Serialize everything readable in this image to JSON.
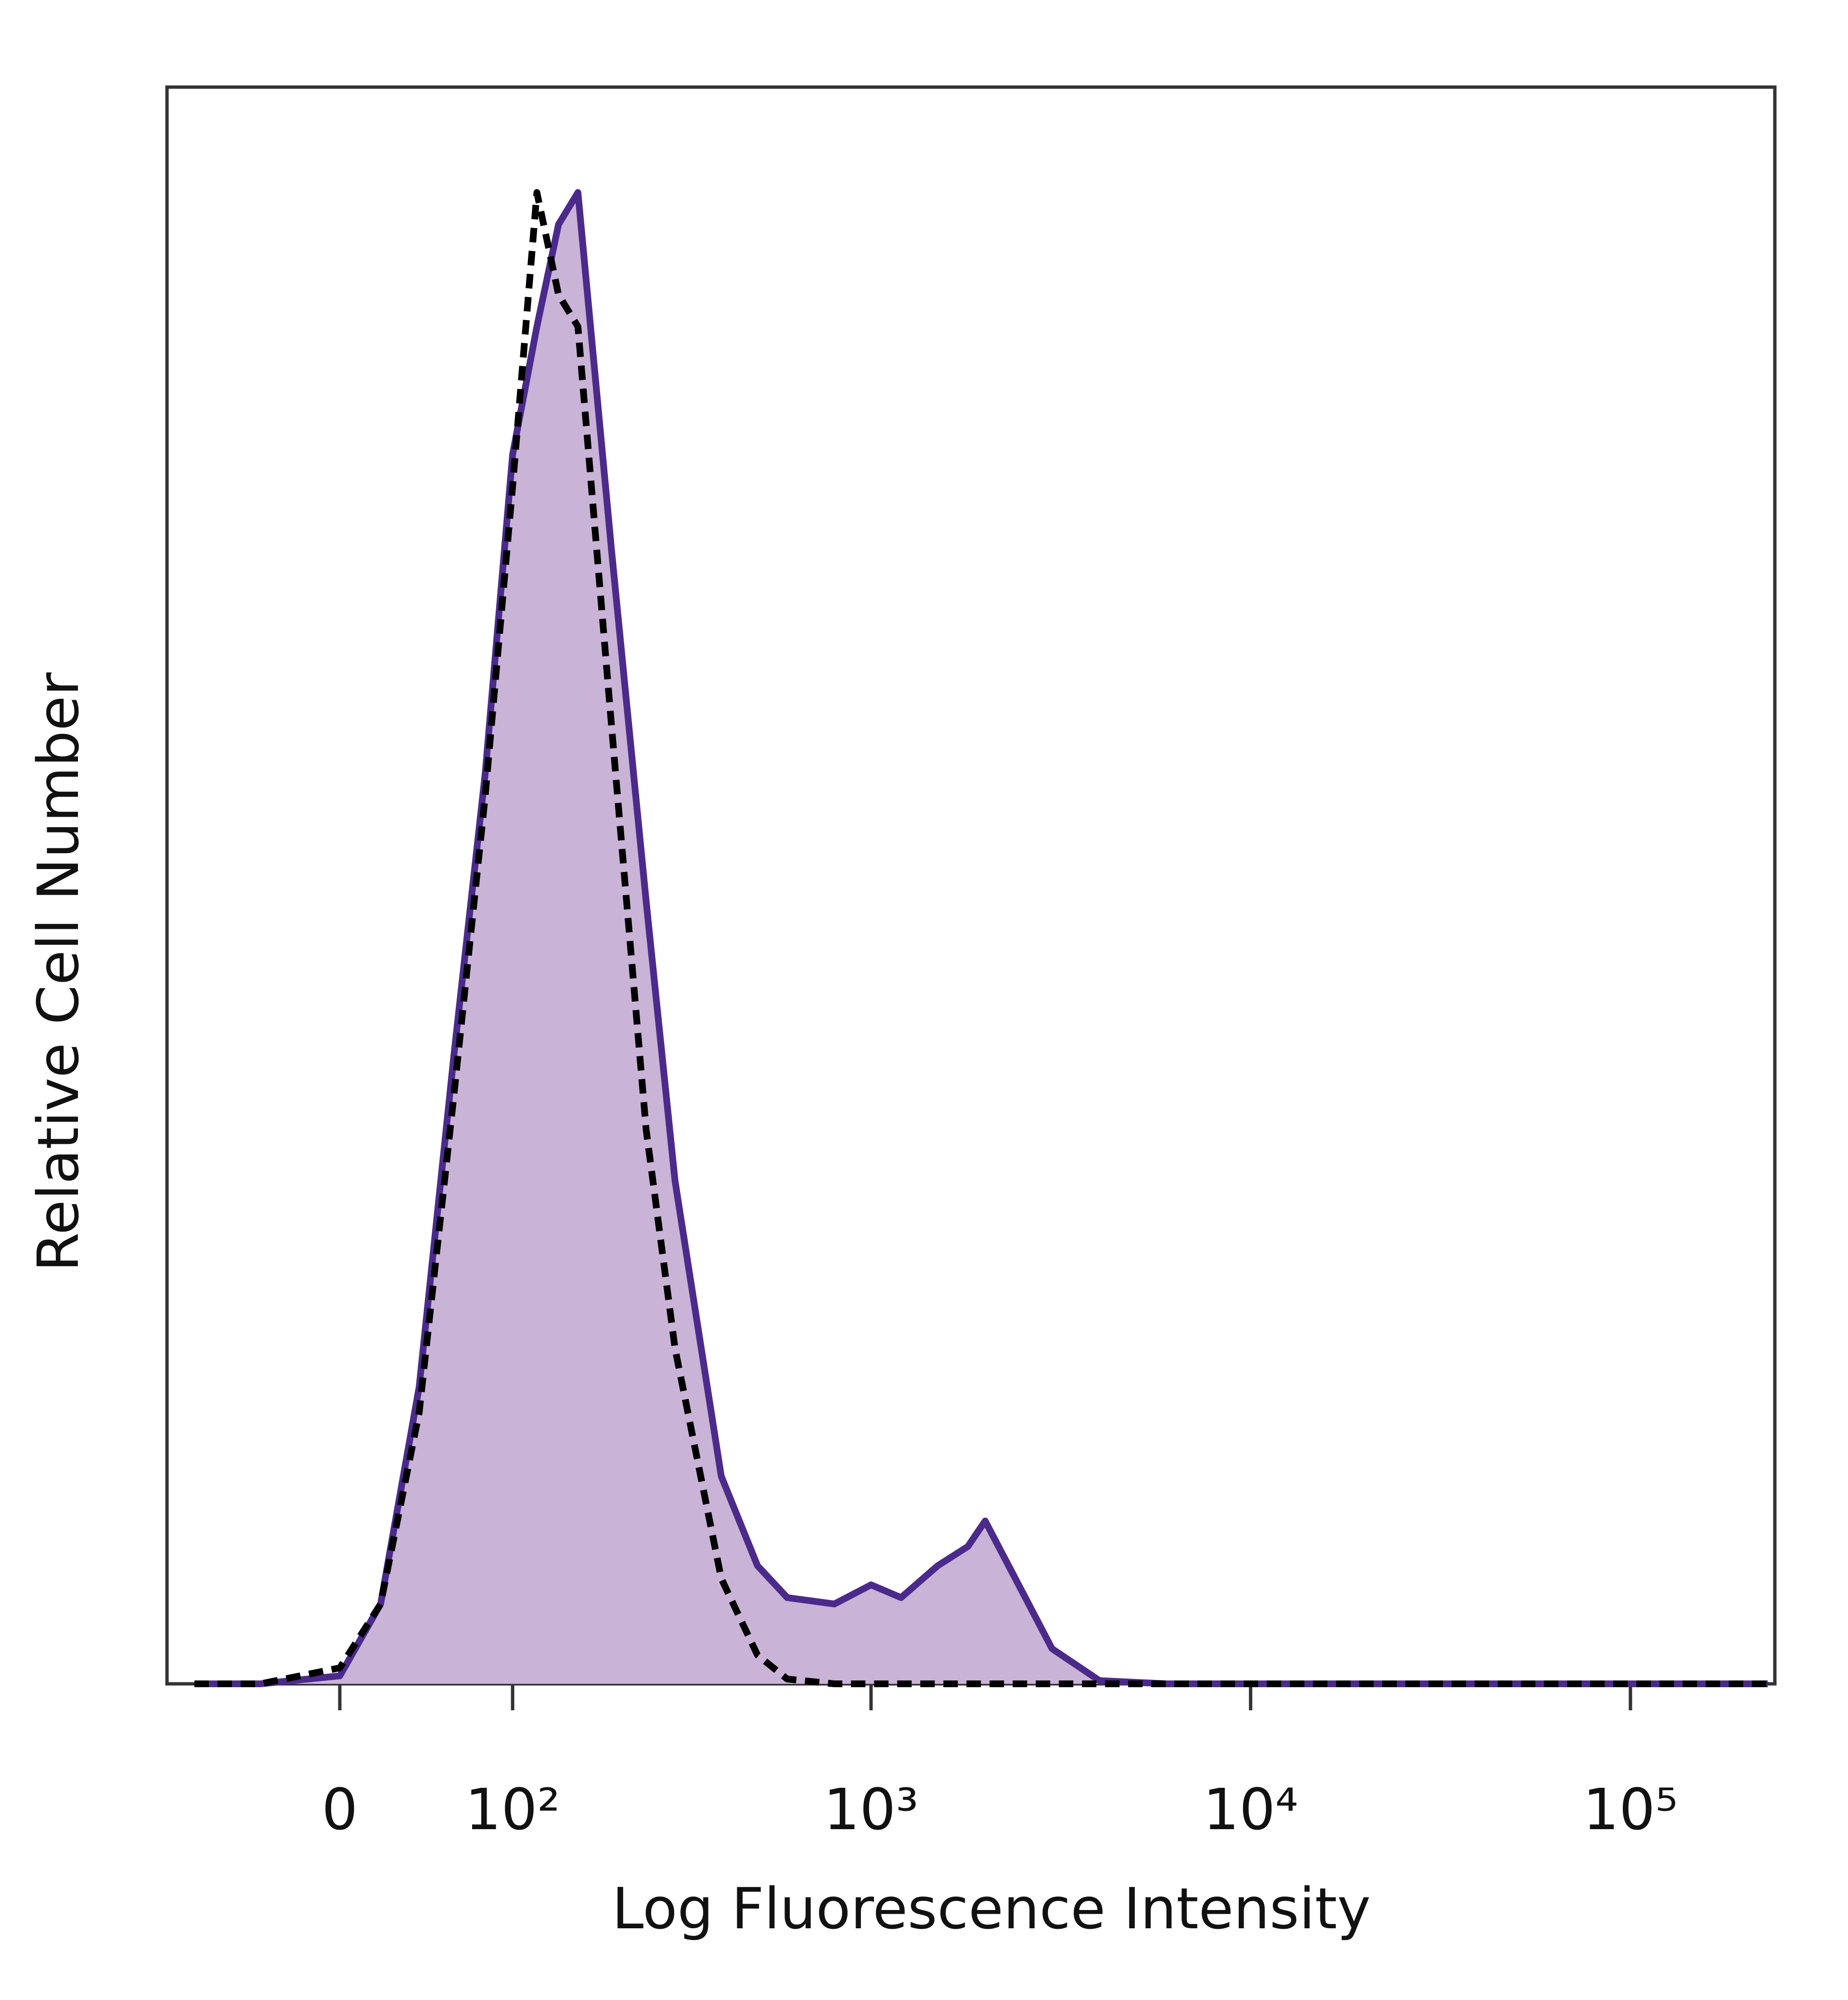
{
  "chart_data": {
    "type": "histogram-overlay",
    "xlabel": "Log Fluorescence Intensity",
    "ylabel": "Relative Cell Number",
    "xscale": "asinh",
    "xscale_cofactor": 80,
    "xlim": [
      -100,
      240000
    ],
    "xticks": [
      0,
      {
        "value": 100,
        "label": "10²"
      },
      {
        "value": 1000,
        "label": "10³"
      },
      {
        "value": 10000,
        "label": "10⁴"
      },
      {
        "value": 100000,
        "label": "10⁵"
      }
    ],
    "ylim": [
      0,
      100
    ],
    "x": [
      -80,
      -40,
      0,
      20,
      40,
      60,
      80,
      100,
      120,
      140,
      160,
      200,
      250,
      300,
      400,
      500,
      600,
      800,
      1000,
      1200,
      1500,
      1800,
      2000,
      2500,
      3000,
      4000,
      6000,
      10000,
      30000,
      100000,
      230000
    ],
    "series": [
      {
        "color": "#4b2a8c",
        "fill": "#c9b3d6",
        "style": "solid",
        "values": [
          0,
          0,
          0.5,
          5,
          18.6,
          39.5,
          57,
          77,
          85,
          91.4,
          93.4,
          71,
          49,
          31.5,
          13,
          7.4,
          5.4,
          5,
          6.2,
          5.4,
          7.4,
          8.6,
          10.2,
          5.8,
          2.2,
          0.2,
          0,
          0,
          0,
          0,
          0
        ]
      },
      {
        "color": "#000000",
        "style": "dashed",
        "values": [
          0,
          0,
          1,
          5,
          17,
          37,
          55.6,
          75,
          93.4,
          87,
          85,
          60,
          34.7,
          21,
          6.6,
          1.8,
          0.3,
          0,
          0,
          0,
          0,
          0,
          0,
          0,
          0,
          0,
          0,
          0,
          0,
          0,
          0
        ]
      }
    ]
  }
}
